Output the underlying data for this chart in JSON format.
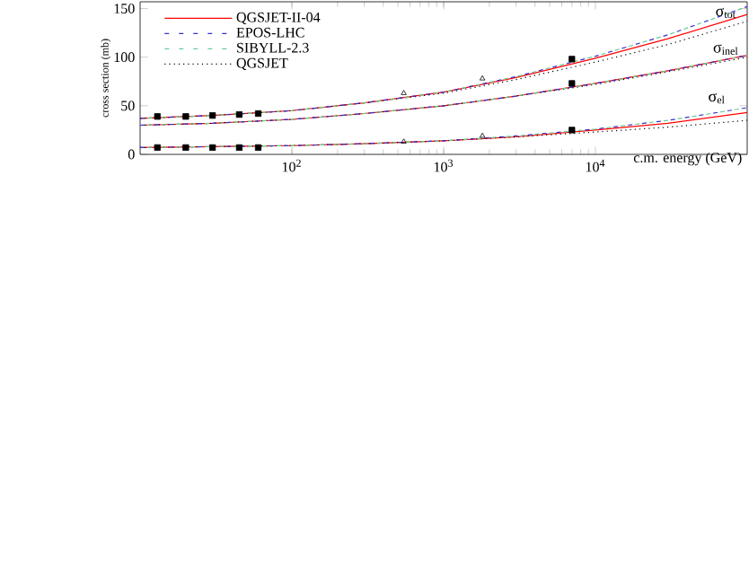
{
  "chart_data": {
    "type": "line",
    "xlabel": "c.m. energy (GeV)",
    "ylabel": "cross section (mb)",
    "log": "x",
    "xlim": [
      10,
      100000
    ],
    "ylim": [
      0,
      157
    ],
    "xticks": [
      {
        "value": 100,
        "label": "10$^{2}$"
      },
      {
        "value": 1000,
        "label": "10$^{3}$"
      },
      {
        "value": 10000,
        "label": "10$^{4}$"
      }
    ],
    "yticks": [
      0,
      50,
      100,
      150
    ],
    "grid": false,
    "legend": "top left",
    "marker": "none",
    "x": [
      10,
      30,
      100,
      300,
      1000,
      3000,
      10000,
      30000,
      100000
    ],
    "series": [
      {
        "name": "QGSJET-II-04",
        "color": "#ff0000",
        "line_style": "solid",
        "values": [
          37,
          40,
          45,
          53,
          64,
          79,
          99,
          119,
          144
        ]
      },
      {
        "name": "EPOS-LHC",
        "color": "#3333cc",
        "line_style": "dashed",
        "values": [
          37,
          40,
          45,
          53,
          64,
          80,
          101,
          123,
          152
        ]
      },
      {
        "name": "SIBYLL-2.3",
        "color": "#66cc99",
        "line_style": "dashed",
        "values": [
          37,
          40,
          45,
          53,
          64,
          80,
          101,
          123,
          152
        ]
      },
      {
        "name": "QGSJET",
        "color": "#000000",
        "line_style": "dotted",
        "values": [
          37,
          40,
          45,
          53,
          63,
          77,
          95,
          113,
          137
        ]
      },
      {
        "color": "#ff0000",
        "line_style": "solid",
        "values": [
          30,
          32,
          36,
          42,
          50,
          60,
          73,
          86,
          102
        ]
      },
      {
        "color": "#3333cc",
        "line_style": "dashed",
        "values": [
          30,
          32,
          36,
          42,
          50,
          60,
          73,
          86,
          102
        ]
      },
      {
        "color": "#66cc99",
        "line_style": "dashed",
        "values": [
          30,
          32,
          36,
          42,
          50,
          60,
          73,
          86,
          102
        ]
      },
      {
        "color": "#000000",
        "line_style": "dotted",
        "values": [
          30,
          32,
          36,
          42,
          50,
          60,
          72,
          85,
          100
        ]
      },
      {
        "color": "#ff0000",
        "line_style": "solid",
        "values": [
          7,
          8,
          9,
          11,
          14,
          18,
          25,
          32,
          43
        ]
      },
      {
        "color": "#3333cc",
        "line_style": "dashed",
        "values": [
          7,
          8,
          9,
          11,
          14,
          19,
          26,
          35,
          48
        ]
      },
      {
        "color": "#66cc99",
        "line_style": "dashed",
        "values": [
          7,
          8,
          9,
          11,
          14,
          19,
          26,
          35,
          48
        ]
      },
      {
        "color": "#000000",
        "line_style": "dotted",
        "values": [
          7,
          8,
          9,
          11,
          14,
          18,
          23,
          28,
          35
        ]
      },
      {
        "type": "scatter",
        "marker": "triangle",
        "color": "#000000",
        "x": [
          546,
          1800,
          546,
          1800
        ],
        "values": [
          63,
          78,
          13,
          19
        ]
      },
      {
        "type": "scatter",
        "marker": "square",
        "color": "#000000",
        "x": [
          13,
          20,
          30,
          45,
          60,
          7000,
          7000,
          7000,
          13,
          20,
          30,
          45,
          60
        ],
        "values": [
          39,
          39,
          40,
          41,
          42,
          98,
          73,
          25,
          7,
          7,
          7,
          7,
          7
        ]
      }
    ],
    "annotations": [
      "σ$_{tot}$",
      "σ$_{inel}$",
      "σ$_{el}$"
    ]
  }
}
